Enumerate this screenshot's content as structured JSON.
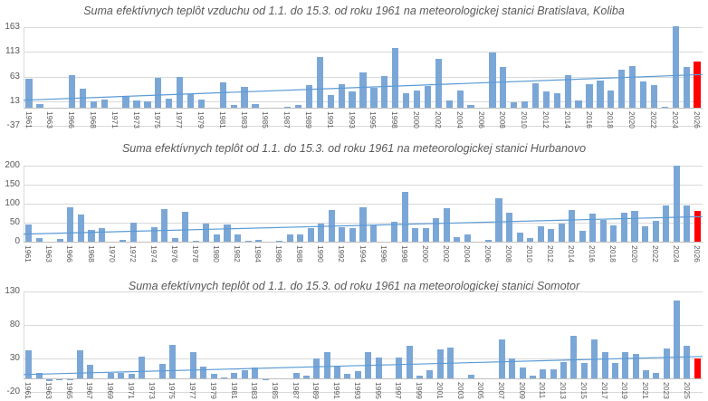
{
  "colors": {
    "bar": "#7ba7d7",
    "highlight": "#ff0000",
    "grid": "#d9d9d9",
    "axis": "#bfbfbf",
    "text": "#595959",
    "trend": "#5b9bd5"
  },
  "chart_data": [
    {
      "type": "bar",
      "title": "Suma efektívnych teplôt vzduchu od 1.1. do 15.3. od roku 1961 na meteorologickej stanici Bratislava, Koliba",
      "ylabel": "",
      "xlabel": "",
      "ylim": [
        -37,
        163
      ],
      "y_ticks": [
        163,
        113,
        63,
        13,
        -37
      ],
      "grid": true,
      "legend": false,
      "highlight_last": true,
      "trend": {
        "start": 15,
        "end": 67
      },
      "years": [
        1961,
        1962,
        1963,
        1965,
        1966,
        1967,
        1968,
        1970,
        1971,
        1972,
        1973,
        1974,
        1975,
        1976,
        1977,
        1978,
        1979,
        1980,
        1981,
        1982,
        1983,
        1984,
        1985,
        1986,
        1987,
        1988,
        1989,
        1990,
        1991,
        1992,
        1993,
        1994,
        1995,
        1997,
        1998,
        1999,
        2000,
        2001,
        2002,
        2003,
        2004,
        2005,
        2006,
        2007,
        2008,
        2009,
        2010,
        2011,
        2012,
        2013,
        2014,
        2015,
        2016,
        2017,
        2018,
        2019,
        2020,
        2021,
        2022,
        2023,
        2024,
        2025,
        2026
      ],
      "values": [
        58,
        7,
        0,
        0,
        65,
        38,
        12,
        17,
        0,
        21,
        15,
        13,
        60,
        18,
        63,
        28,
        16,
        0,
        52,
        5,
        42,
        7,
        0,
        0,
        2,
        5,
        45,
        103,
        25,
        47,
        32,
        71,
        40,
        64,
        121,
        29,
        35,
        44,
        99,
        14,
        34,
        6,
        0,
        112,
        82,
        10,
        13,
        50,
        32,
        29,
        65,
        15,
        48,
        54,
        35,
        77,
        84,
        53,
        46,
        2,
        165,
        83,
        94
      ],
      "x_labels": [
        1961,
        1963,
        1966,
        1968,
        1971,
        1973,
        1975,
        1977,
        1979,
        1981,
        1983,
        1985,
        1987,
        1989,
        1991,
        1993,
        1995,
        1998,
        2000,
        2002,
        2004,
        2006,
        2008,
        2010,
        2012,
        2014,
        2016,
        2018,
        2020,
        2022,
        2024,
        2026
      ]
    },
    {
      "type": "bar",
      "title": "Suma efektívnych teplôt od 1.1. do 15.3. od roku 1961 na meteorologickej stanici Hurbanovo",
      "ylabel": "",
      "xlabel": "",
      "ylim": [
        0,
        200
      ],
      "y_ticks": [
        200,
        150,
        100,
        50,
        0
      ],
      "grid": true,
      "legend": false,
      "highlight_last": true,
      "trend": {
        "start": 20,
        "end": 66
      },
      "years": [
        1961,
        1962,
        1963,
        1965,
        1966,
        1967,
        1968,
        1969,
        1970,
        1971,
        1972,
        1973,
        1974,
        1975,
        1976,
        1977,
        1978,
        1979,
        1980,
        1981,
        1982,
        1983,
        1984,
        1985,
        1986,
        1987,
        1988,
        1989,
        1990,
        1991,
        1992,
        1993,
        1994,
        1995,
        1996,
        1997,
        1998,
        1999,
        2000,
        2001,
        2002,
        2003,
        2004,
        2005,
        2006,
        2007,
        2008,
        2009,
        2010,
        2011,
        2012,
        2013,
        2014,
        2015,
        2016,
        2017,
        2018,
        2019,
        2020,
        2021,
        2022,
        2023,
        2024,
        2025,
        2026
      ],
      "values": [
        46,
        10,
        0,
        7,
        90,
        72,
        32,
        35,
        0,
        6,
        49,
        0,
        38,
        87,
        10,
        78,
        2,
        48,
        19,
        45,
        20,
        2,
        6,
        1,
        3,
        20,
        18,
        35,
        47,
        84,
        38,
        36,
        90,
        44,
        0,
        52,
        130,
        36,
        37,
        63,
        89,
        11,
        19,
        1,
        6,
        115,
        77,
        25,
        10,
        40,
        33,
        47,
        84,
        28,
        73,
        58,
        43,
        77,
        80,
        41,
        54,
        95,
        200,
        95,
        81
      ],
      "x_labels": [
        1961,
        1963,
        1966,
        1968,
        1970,
        1972,
        1974,
        1976,
        1978,
        1980,
        1982,
        1984,
        1986,
        1988,
        1990,
        1992,
        1994,
        1996,
        1998,
        2000,
        2002,
        2004,
        2006,
        2008,
        2010,
        2012,
        2014,
        2016,
        2018,
        2020,
        2022,
        2024,
        2026
      ]
    },
    {
      "type": "bar",
      "title": "Suma efektívnych teplôt od 1.1. do 15.3. od roku 1961 na meteorologickej stanici Somotor",
      "ylabel": "",
      "xlabel": "",
      "ylim": [
        -20,
        130
      ],
      "y_ticks": [
        130,
        80,
        30,
        -20
      ],
      "grid": true,
      "legend": false,
      "highlight_last": true,
      "trend": {
        "start": 6,
        "end": 33
      },
      "years": [
        1961,
        1962,
        1963,
        1964,
        1965,
        1966,
        1967,
        1968,
        1969,
        1970,
        1971,
        1972,
        1973,
        1974,
        1975,
        1976,
        1977,
        1978,
        1979,
        1980,
        1981,
        1982,
        1983,
        1984,
        1985,
        1986,
        1987,
        1988,
        1989,
        1990,
        1991,
        1992,
        1993,
        1994,
        1995,
        1996,
        1997,
        1998,
        1999,
        2000,
        2001,
        2002,
        2003,
        2004,
        2005,
        2006,
        2007,
        2008,
        2009,
        2010,
        2011,
        2012,
        2013,
        2014,
        2015,
        2016,
        2017,
        2018,
        2019,
        2020,
        2021,
        2022,
        2023,
        2024,
        2025,
        2026
      ],
      "values": [
        42,
        9,
        -4,
        -2,
        -3,
        42,
        20,
        0,
        8,
        8,
        7,
        33,
        0,
        22,
        51,
        0,
        40,
        18,
        7,
        2,
        8,
        13,
        17,
        -3,
        0,
        1,
        9,
        4,
        30,
        39,
        19,
        7,
        11,
        40,
        32,
        0,
        32,
        49,
        5,
        13,
        44,
        46,
        0,
        6,
        0,
        0,
        58,
        30,
        16,
        5,
        14,
        14,
        24,
        64,
        23,
        59,
        39,
        23,
        40,
        37,
        12,
        9,
        45,
        117,
        49,
        30
      ],
      "x_labels": [
        1961,
        1963,
        1965,
        1967,
        1969,
        1971,
        1973,
        1975,
        1977,
        1979,
        1981,
        1983,
        1985,
        1987,
        1989,
        1991,
        1993,
        1995,
        1997,
        1999,
        2001,
        2003,
        2005,
        2007,
        2009,
        2011,
        2013,
        2015,
        2017,
        2019,
        2021,
        2023,
        2025
      ]
    }
  ]
}
